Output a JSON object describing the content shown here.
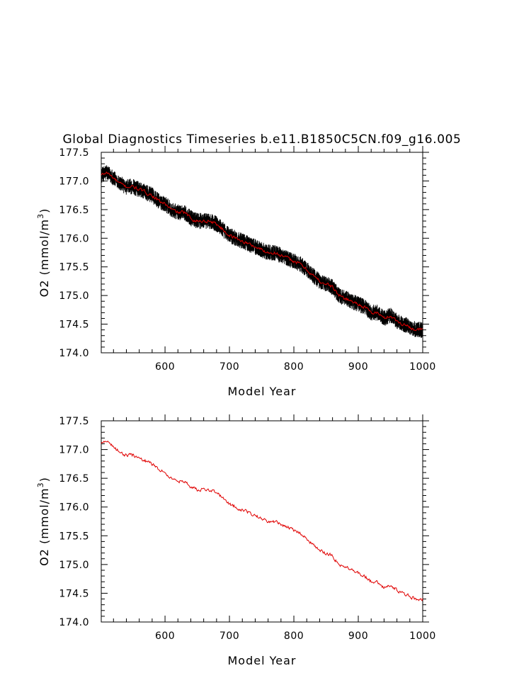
{
  "title": "Global Diagnostics Timeseries b.e11.B1850C5CN.f09_g16.005",
  "chart_data": [
    {
      "type": "line",
      "xlabel": "Model Year",
      "ylabel": "O2 (mmol/m",
      "ylabel_sup": "3",
      "ylabel_close": ")",
      "xlim": [
        501,
        1000
      ],
      "ylim": [
        174.0,
        177.5
      ],
      "xticks": [
        600,
        700,
        800,
        900,
        1000
      ],
      "xtick_labels": [
        "600",
        "700",
        "800",
        "900",
        "1000"
      ],
      "yticks": [
        174.0,
        174.5,
        175.0,
        175.5,
        176.0,
        176.5,
        177.0,
        177.5
      ],
      "ytick_labels": [
        "174.0",
        "174.5",
        "175.0",
        "175.5",
        "176.0",
        "176.5",
        "177.0",
        "177.5"
      ],
      "series": [
        {
          "kind": "monthly-envelope",
          "color": "#000000"
        },
        {
          "kind": "annual-mean",
          "color": "#e00000"
        }
      ],
      "x": [
        501,
        510,
        520,
        530,
        540,
        550,
        560,
        570,
        580,
        590,
        600,
        610,
        620,
        630,
        640,
        650,
        660,
        670,
        680,
        690,
        700,
        710,
        720,
        730,
        740,
        750,
        760,
        770,
        780,
        790,
        800,
        810,
        820,
        830,
        840,
        850,
        860,
        870,
        880,
        890,
        900,
        910,
        920,
        930,
        940,
        950,
        960,
        970,
        980,
        990,
        1000
      ],
      "values": [
        177.1,
        177.15,
        177.05,
        176.95,
        176.9,
        176.9,
        176.85,
        176.8,
        176.75,
        176.65,
        176.6,
        176.5,
        176.45,
        176.45,
        176.35,
        176.3,
        176.3,
        176.3,
        176.25,
        176.15,
        176.05,
        176.0,
        175.95,
        175.9,
        175.85,
        175.8,
        175.75,
        175.75,
        175.7,
        175.65,
        175.6,
        175.55,
        175.45,
        175.35,
        175.25,
        175.2,
        175.15,
        175.0,
        174.95,
        174.9,
        174.85,
        174.8,
        174.7,
        174.7,
        174.6,
        174.65,
        174.55,
        174.5,
        174.45,
        174.4,
        174.4
      ]
    },
    {
      "type": "line",
      "xlabel": "Model Year",
      "ylabel": "O2 (mmol/m",
      "ylabel_sup": "3",
      "ylabel_close": ")",
      "xlim": [
        501,
        1000
      ],
      "ylim": [
        174.0,
        177.5
      ],
      "xticks": [
        600,
        700,
        800,
        900,
        1000
      ],
      "xtick_labels": [
        "600",
        "700",
        "800",
        "900",
        "1000"
      ],
      "yticks": [
        174.0,
        174.5,
        175.0,
        175.5,
        176.0,
        176.5,
        177.0,
        177.5
      ],
      "ytick_labels": [
        "174.0",
        "174.5",
        "175.0",
        "175.5",
        "176.0",
        "176.5",
        "177.0",
        "177.5"
      ],
      "series": [
        {
          "kind": "annual-mean",
          "color": "#e00000"
        }
      ],
      "x": [
        501,
        510,
        520,
        530,
        540,
        550,
        560,
        570,
        580,
        590,
        600,
        610,
        620,
        630,
        640,
        650,
        660,
        670,
        680,
        690,
        700,
        710,
        720,
        730,
        740,
        750,
        760,
        770,
        780,
        790,
        800,
        810,
        820,
        830,
        840,
        850,
        860,
        870,
        880,
        890,
        900,
        910,
        920,
        930,
        940,
        950,
        960,
        970,
        980,
        990,
        1000
      ],
      "values": [
        177.1,
        177.15,
        177.05,
        176.95,
        176.9,
        176.9,
        176.85,
        176.8,
        176.75,
        176.65,
        176.6,
        176.5,
        176.45,
        176.45,
        176.35,
        176.3,
        176.3,
        176.3,
        176.25,
        176.15,
        176.05,
        176.0,
        175.95,
        175.9,
        175.85,
        175.8,
        175.75,
        175.75,
        175.7,
        175.65,
        175.6,
        175.55,
        175.45,
        175.35,
        175.25,
        175.2,
        175.15,
        175.0,
        174.95,
        174.9,
        174.85,
        174.8,
        174.7,
        174.7,
        174.6,
        174.65,
        174.55,
        174.5,
        174.45,
        174.4,
        174.4
      ]
    }
  ]
}
